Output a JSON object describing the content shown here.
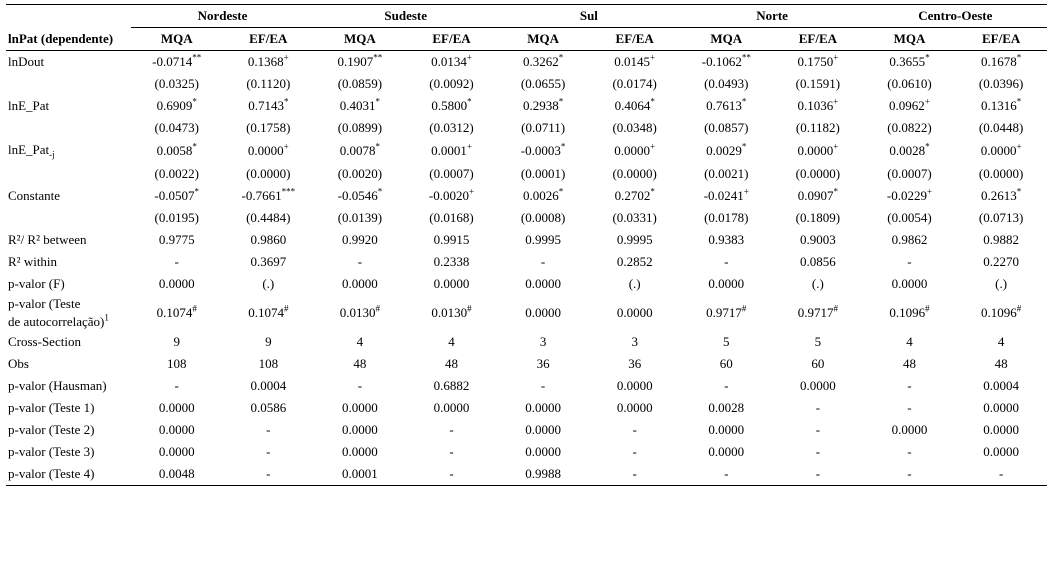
{
  "regions": [
    "Nordeste",
    "Sudeste",
    "Sul",
    "Norte",
    "Centro-Oeste"
  ],
  "subcols": [
    "MQA",
    "EF/EA"
  ],
  "dep_label": "lnPat (dependente)",
  "rows": [
    {
      "label": "lnDout",
      "vals": [
        "-0.0714",
        "0.1368",
        "0.1907",
        "0.0134",
        "0.3262",
        "0.0145",
        "-0.1062",
        "0.1750",
        "0.3655",
        "0.1678"
      ],
      "sup": [
        "**",
        "+",
        "**",
        "+",
        "*",
        "+",
        "**",
        "+",
        "*",
        "*"
      ]
    },
    {
      "label": "",
      "vals": [
        "(0.0325)",
        "(0.1120)",
        "(0.0859)",
        "(0.0092)",
        "(0.0655)",
        "(0.0174)",
        "(0.0493)",
        "(0.1591)",
        "(0.0610)",
        "(0.0396)"
      ],
      "sup": [
        "",
        "",
        "",
        "",
        "",
        "",
        "",
        "",
        "",
        ""
      ]
    },
    {
      "label": "lnE_Pat",
      "vals": [
        "0.6909",
        "0.7143",
        "0.4031",
        "0.5800",
        "0.2938",
        "0.4064",
        "0.7613",
        "0.1036",
        "0.0962",
        "0.1316"
      ],
      "sup": [
        "*",
        "*",
        "*",
        "*",
        "*",
        "*",
        "*",
        "+",
        "+",
        "*"
      ]
    },
    {
      "label": "",
      "vals": [
        "(0.0473)",
        "(0.1758)",
        "(0.0899)",
        "(0.0312)",
        "(0.0711)",
        "(0.0348)",
        "(0.0857)",
        "(0.1182)",
        "(0.0822)",
        "(0.0448)"
      ],
      "sup": [
        "",
        "",
        "",
        "",
        "",
        "",
        "",
        "",
        "",
        ""
      ]
    },
    {
      "label": "lnE_Pat",
      "sub": "-j",
      "vals": [
        "0.0058",
        "0.0000",
        "0.0078",
        "0.0001",
        "-0.0003",
        "0.0000",
        "0.0029",
        "0.0000",
        "0.0028",
        "0.0000"
      ],
      "sup": [
        "*",
        "+",
        "*",
        "+",
        "*",
        "+",
        "*",
        "+",
        "*",
        "+"
      ]
    },
    {
      "label": "",
      "vals": [
        "(0.0022)",
        "(0.0000)",
        "(0.0020)",
        "(0.0007)",
        "(0.0001)",
        "(0.0000)",
        "(0.0021)",
        "(0.0000)",
        "(0.0007)",
        "(0.0000)"
      ],
      "sup": [
        "",
        "",
        "",
        "",
        "",
        "",
        "",
        "",
        "",
        ""
      ]
    },
    {
      "label": "Constante",
      "vals": [
        "-0.0507",
        "-0.7661",
        "-0.0546",
        "-0.0020",
        "0.0026",
        "0.2702",
        "-0.0241",
        "0.0907",
        "-0.0229",
        "0.2613"
      ],
      "sup": [
        "*",
        "***",
        "*",
        "+",
        "*",
        "*",
        "+",
        "*",
        "+",
        "*"
      ]
    },
    {
      "label": "",
      "vals": [
        "(0.0195)",
        "(0.4484)",
        "(0.0139)",
        "(0.0168)",
        "(0.0008)",
        "(0.0331)",
        "(0.0178)",
        "(0.1809)",
        "(0.0054)",
        "(0.0713)"
      ],
      "sup": [
        "",
        "",
        "",
        "",
        "",
        "",
        "",
        "",
        "",
        ""
      ]
    },
    {
      "label": "R²/ R² between",
      "vals": [
        "0.9775",
        "0.9860",
        "0.9920",
        "0.9915",
        "0.9995",
        "0.9995",
        "0.9383",
        "0.9003",
        "0.9862",
        "0.9882"
      ],
      "sup": [
        "",
        "",
        "",
        "",
        "",
        "",
        "",
        "",
        "",
        ""
      ]
    },
    {
      "label": "R² within",
      "vals": [
        "-",
        "0.3697",
        "-",
        "0.2338",
        "-",
        "0.2852",
        "-",
        "0.0856",
        "-",
        "0.2270"
      ],
      "sup": [
        "",
        "",
        "",
        "",
        "",
        "",
        "",
        "",
        "",
        ""
      ]
    },
    {
      "label": "p-valor (F)",
      "vals": [
        "0.0000",
        "(.)",
        "0.0000",
        "0.0000",
        "0.0000",
        "(.)",
        "0.0000",
        "(.)",
        "0.0000",
        "(.)"
      ],
      "sup": [
        "",
        "",
        "",
        "",
        "",
        "",
        "",
        "",
        "",
        ""
      ]
    },
    {
      "label": "p-valor (Teste",
      "label2": "de autocorrelação)",
      "labsup": "1",
      "vals": [
        "0.1074",
        "0.1074",
        "0.0130",
        "0.0130",
        "0.0000",
        "0.0000",
        "0.9717",
        "0.9717",
        "0.1096",
        "0.1096"
      ],
      "sup": [
        "#",
        "#",
        "#",
        "#",
        "",
        "",
        "#",
        "#",
        "#",
        "#"
      ],
      "twoLine": true
    },
    {
      "label": "Cross-Section",
      "vals": [
        "9",
        "9",
        "4",
        "4",
        "3",
        "3",
        "5",
        "5",
        "4",
        "4"
      ],
      "sup": [
        "",
        "",
        "",
        "",
        "",
        "",
        "",
        "",
        "",
        ""
      ]
    },
    {
      "label": "Obs",
      "vals": [
        "108",
        "108",
        "48",
        "48",
        "36",
        "36",
        "60",
        "60",
        "48",
        "48"
      ],
      "sup": [
        "",
        "",
        "",
        "",
        "",
        "",
        "",
        "",
        "",
        ""
      ]
    },
    {
      "label": "p-valor (Hausman)",
      "vals": [
        "-",
        "0.0004",
        "-",
        "0.6882",
        "-",
        "0.0000",
        "-",
        "0.0000",
        "-",
        "0.0004"
      ],
      "sup": [
        "",
        "",
        "",
        "",
        "",
        "",
        "",
        "",
        "",
        ""
      ]
    },
    {
      "label": "p-valor (Teste 1)",
      "vals": [
        "0.0000",
        "0.0586",
        "0.0000",
        "0.0000",
        "0.0000",
        "0.0000",
        "0.0028",
        "-",
        "-",
        "0.0000"
      ],
      "sup": [
        "",
        "",
        "",
        "",
        "",
        "",
        "",
        "",
        "",
        ""
      ]
    },
    {
      "label": "p-valor (Teste 2)",
      "vals": [
        "0.0000",
        "-",
        "0.0000",
        "-",
        "0.0000",
        "-",
        "0.0000",
        "-",
        "0.0000",
        "0.0000"
      ],
      "sup": [
        "",
        "",
        "",
        "",
        "",
        "",
        "",
        "",
        "",
        ""
      ]
    },
    {
      "label": "p-valor (Teste 3)",
      "vals": [
        "0.0000",
        "-",
        "0.0000",
        "-",
        "0.0000",
        "-",
        "0.0000",
        "-",
        "-",
        "0.0000"
      ],
      "sup": [
        "",
        "",
        "",
        "",
        "",
        "",
        "",
        "",
        "",
        ""
      ]
    },
    {
      "label": "p-valor (Teste 4)",
      "vals": [
        "0.0048",
        "-",
        "0.0001",
        "-",
        "0.9988",
        "-",
        "-",
        "-",
        "-",
        "-"
      ],
      "sup": [
        "",
        "",
        "",
        "",
        "",
        "",
        "",
        "",
        "",
        ""
      ]
    }
  ]
}
